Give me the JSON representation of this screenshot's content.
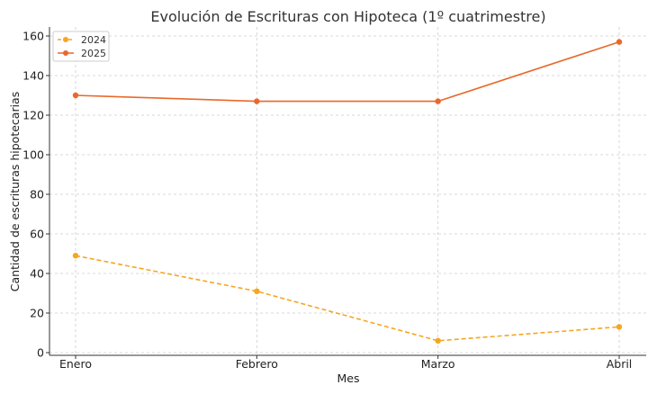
{
  "chart_data": {
    "type": "line",
    "title": "Evolución de Escrituras con Hipoteca (1º cuatrimestre)",
    "xlabel": "Mes",
    "ylabel": "Cantidad de escrituras hipotecarias",
    "categories": [
      "Enero",
      "Febrero",
      "Marzo",
      "Abril"
    ],
    "ylim": [
      0,
      160
    ],
    "yticks": [
      0,
      20,
      40,
      60,
      80,
      100,
      120,
      140,
      160
    ],
    "grid": true,
    "legend_position": "top-left",
    "series": [
      {
        "name": "2024",
        "values": [
          49,
          31,
          6,
          13
        ],
        "color": "#f5a623",
        "line_style": "dashed",
        "marker": "circle"
      },
      {
        "name": "2025",
        "values": [
          130,
          127,
          127,
          157
        ],
        "color": "#e8692a",
        "line_style": "solid",
        "marker": "circle"
      }
    ]
  }
}
